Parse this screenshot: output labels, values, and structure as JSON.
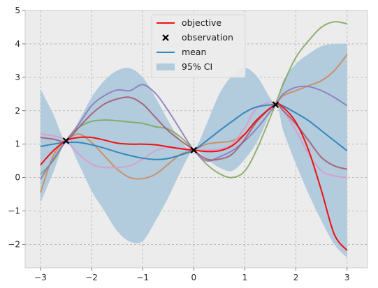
{
  "chart_data": {
    "type": "line",
    "xlim": [
      -3.3,
      3.4
    ],
    "ylim": [
      -2.7,
      5
    ],
    "xticks": [
      -3,
      -2,
      -1,
      0,
      1,
      2,
      3
    ],
    "yticks": [
      5,
      4,
      3,
      2,
      1,
      0,
      -1,
      -2
    ],
    "xtick_labels": [
      "−3",
      "−2",
      "−1",
      "0",
      "1",
      "2",
      "3"
    ],
    "ytick_labels": [
      "5",
      "4",
      "3",
      "2",
      "1",
      "0",
      "−1",
      "−2"
    ],
    "grid": true,
    "legend": {
      "position": "top-center",
      "entries": [
        {
          "label": "objective",
          "kind": "line",
          "color": "#ee1111"
        },
        {
          "label": "observation",
          "kind": "marker-x",
          "color": "#000000"
        },
        {
          "label": "mean",
          "kind": "line",
          "color": "#3388bb"
        },
        {
          "label": "95% CI",
          "kind": "patch",
          "color": "#b2cbdd"
        }
      ]
    },
    "colors": {
      "background": "#ececec",
      "objective": "#ee1111",
      "mean": "#3388bb",
      "ci": "#b2cbdd",
      "grid": "#b0b0b0"
    },
    "x": [
      -3.0,
      -2.75,
      -2.5,
      -2.25,
      -2.0,
      -1.75,
      -1.5,
      -1.25,
      -1.0,
      -0.75,
      -0.5,
      -0.25,
      0.0,
      0.25,
      0.5,
      0.75,
      1.0,
      1.25,
      1.6,
      1.75,
      2.0,
      2.25,
      2.5,
      2.75,
      3.0
    ],
    "objective": [
      0.38,
      0.8,
      1.1,
      1.2,
      1.2,
      1.12,
      1.03,
      1.0,
      1.0,
      0.98,
      0.92,
      0.86,
      0.82,
      0.78,
      0.8,
      0.95,
      1.3,
      1.75,
      2.18,
      2.1,
      1.65,
      0.8,
      -0.4,
      -1.7,
      -2.18
    ],
    "mean": [
      0.93,
      1.0,
      1.05,
      1.05,
      0.98,
      0.88,
      0.76,
      0.66,
      0.58,
      0.54,
      0.57,
      0.68,
      0.82,
      1.1,
      1.4,
      1.68,
      1.95,
      2.12,
      2.18,
      2.14,
      1.93,
      1.7,
      1.4,
      1.1,
      0.8
    ],
    "ci_upper": [
      2.65,
      1.9,
      1.1,
      1.7,
      2.4,
      2.9,
      3.2,
      3.27,
      3.0,
      2.4,
      1.7,
      1.1,
      0.82,
      1.6,
      2.5,
      3.05,
      3.28,
      3.0,
      2.2,
      2.9,
      3.4,
      3.7,
      3.93,
      4.0,
      4.0
    ],
    "ci_lower": [
      -0.75,
      0.15,
      1.05,
      0.4,
      -0.4,
      -1.0,
      -1.6,
      -1.92,
      -1.9,
      -1.3,
      -0.6,
      0.2,
      0.82,
      0.55,
      0.3,
      0.2,
      0.55,
      1.1,
      2.15,
      1.4,
      0.4,
      -0.5,
      -1.3,
      -2.0,
      -2.4
    ],
    "samples": [
      {
        "color": "#7ea45a",
        "values": [
          0.1,
          0.5,
          1.1,
          1.5,
          1.68,
          1.72,
          1.7,
          1.66,
          1.62,
          1.52,
          1.45,
          1.2,
          0.82,
          0.4,
          0.12,
          0.0,
          0.2,
          0.9,
          2.2,
          2.8,
          3.6,
          4.1,
          4.5,
          4.66,
          4.6
        ]
      },
      {
        "color": "#cc8855",
        "values": [
          -0.45,
          0.65,
          1.1,
          1.3,
          1.05,
          0.65,
          0.25,
          0.0,
          -0.03,
          0.1,
          0.4,
          0.7,
          0.82,
          1.0,
          1.05,
          1.1,
          1.3,
          1.75,
          2.2,
          2.45,
          2.6,
          2.75,
          2.9,
          3.2,
          3.68
        ]
      },
      {
        "color": "#8877bb",
        "values": [
          -0.05,
          0.55,
          1.1,
          1.6,
          2.15,
          2.45,
          2.62,
          2.6,
          2.78,
          2.52,
          2.0,
          1.4,
          0.82,
          0.5,
          0.62,
          0.8,
          1.1,
          1.5,
          2.18,
          2.5,
          2.7,
          2.72,
          2.6,
          2.4,
          2.15
        ]
      },
      {
        "color": "#dd99cc",
        "values": [
          1.3,
          1.25,
          1.1,
          0.7,
          0.4,
          0.3,
          0.3,
          0.35,
          0.55,
          0.8,
          0.9,
          0.88,
          0.82,
          0.82,
          0.85,
          1.0,
          1.5,
          2.1,
          2.25,
          2.0,
          1.4,
          0.7,
          0.2,
          0.05,
          0.0
        ]
      },
      {
        "color": "#a6556a",
        "values": [
          1.2,
          1.15,
          1.1,
          1.5,
          1.9,
          2.2,
          2.35,
          2.4,
          2.2,
          1.8,
          1.4,
          1.1,
          0.82,
          0.55,
          0.55,
          0.7,
          1.15,
          1.7,
          2.18,
          2.0,
          1.6,
          1.1,
          0.6,
          0.35,
          0.25
        ]
      }
    ],
    "observations": [
      {
        "x": -2.5,
        "y": 1.1
      },
      {
        "x": 0.0,
        "y": 0.82
      },
      {
        "x": 1.6,
        "y": 2.18
      }
    ]
  }
}
